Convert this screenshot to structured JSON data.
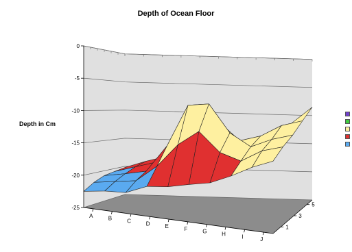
{
  "chart_data": {
    "type": "surface3d",
    "title": "Depth of Ocean Floor",
    "ylabel": "Depth in Cm",
    "x_categories": [
      "A",
      "B",
      "C",
      "D",
      "E",
      "F",
      "G",
      "H",
      "I",
      "J"
    ],
    "z_ticks": [
      1,
      3,
      5
    ],
    "y_ticks": [
      0,
      -5,
      -10,
      -15,
      -20,
      -25
    ],
    "ylim": [
      -25,
      0
    ],
    "grid": true,
    "legend_position": "right",
    "band_colors": [
      "#5aaaf0",
      "#e03030",
      "#fef0a0",
      "#40cc40",
      "#7040cc"
    ],
    "floor_color": "#8c8c8c",
    "wall_color": "#e0e0e0",
    "surface": [
      [
        -22.5,
        -22.0,
        -21.8,
        -20.4,
        -20.0,
        -19.2,
        -18.5,
        -17.0,
        -15.2,
        -13.8
      ],
      [
        -21.5,
        -21.0,
        -20.5,
        -17.8,
        -14.0,
        -11.5,
        -14.5,
        -15.5,
        -13.5,
        -12.5
      ],
      [
        -20.8,
        -20.2,
        -19.5,
        -15.0,
        -8.0,
        -7.5,
        -12.0,
        -14.0,
        -12.5,
        -11.5
      ],
      [
        -20.5,
        -19.5,
        -18.5,
        -16.5,
        -12.0,
        -11.0,
        -14.0,
        -13.0,
        -11.0,
        -10.0
      ],
      [
        -20.2,
        -19.0,
        -18.0,
        -17.5,
        -17.0,
        -16.5,
        -16.0,
        -14.0,
        -11.5,
        -8.5
      ]
    ]
  }
}
